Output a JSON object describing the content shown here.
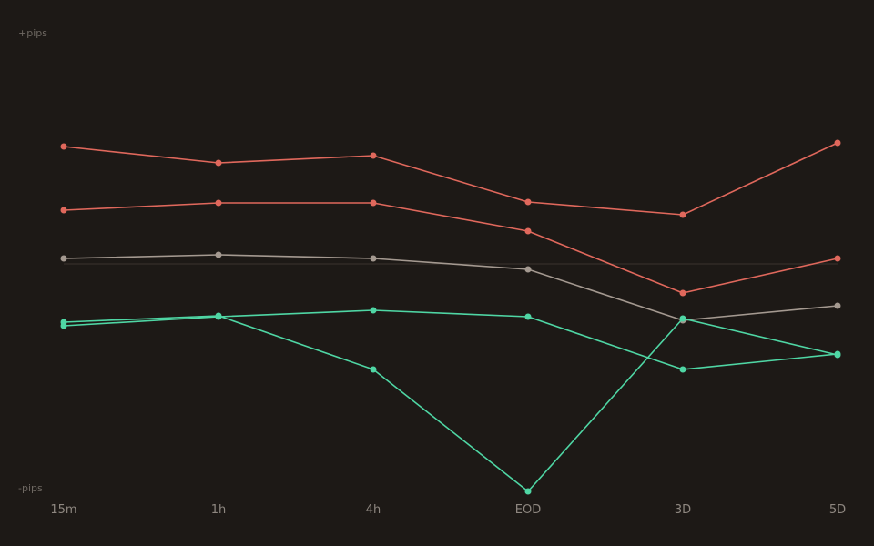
{
  "chart_data": {
    "type": "line",
    "title": "",
    "xlabel": "",
    "ylabel": "",
    "y_top_label": "+pips",
    "y_bottom_label": "-pips",
    "categories": [
      "15m",
      "1h",
      "4h",
      "EOD",
      "3D",
      "5D"
    ],
    "ylim": [
      -250,
      250
    ],
    "zero_line": true,
    "grid": false,
    "legend": "none",
    "series": [
      {
        "color": "#e0685c",
        "values": [
          129,
          111,
          119,
          68,
          54,
          133
        ]
      },
      {
        "color": "#e0685c",
        "values": [
          59,
          67,
          67,
          36,
          -32,
          6
        ]
      },
      {
        "color": "#a49990",
        "values": [
          6,
          10,
          6,
          -6,
          -62,
          -46
        ]
      },
      {
        "color": "#4fd6a4",
        "values": [
          -68,
          -58,
          -51,
          -58,
          -116,
          -99
        ]
      },
      {
        "color": "#4fd6a4",
        "values": [
          -64,
          -57,
          -116,
          -250,
          -60,
          -100
        ]
      }
    ]
  }
}
